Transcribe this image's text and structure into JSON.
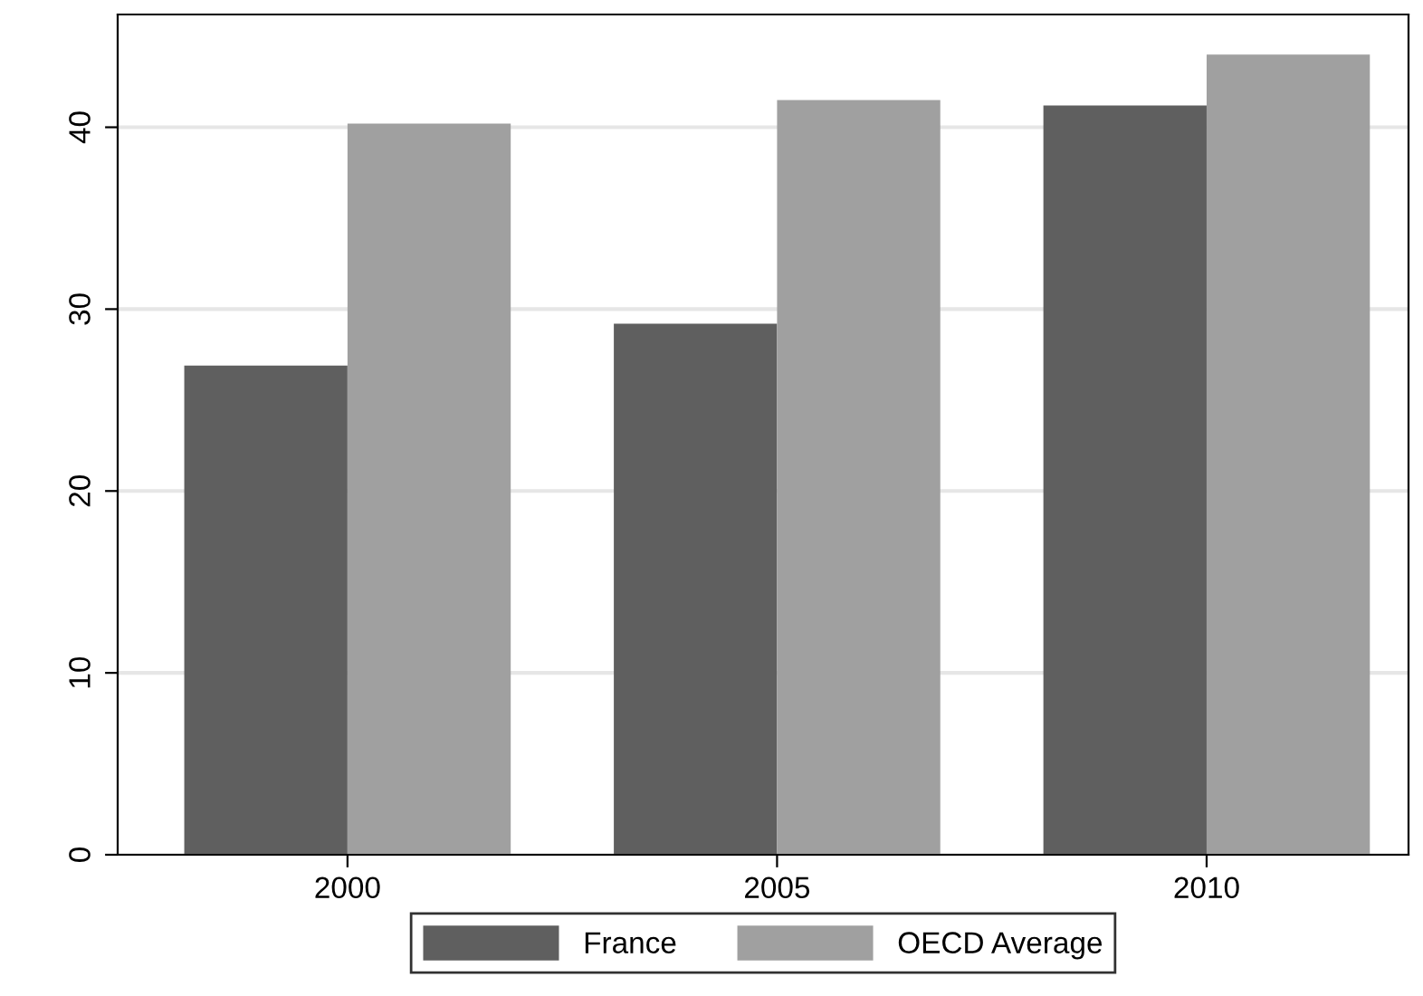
{
  "chart_data": {
    "type": "bar",
    "categories": [
      "2000",
      "2005",
      "2010"
    ],
    "series": [
      {
        "name": "France",
        "color": "#5f5f5f",
        "values": [
          26.9,
          29.2,
          41.2
        ]
      },
      {
        "name": "OECD Average",
        "color": "#a0a0a0",
        "values": [
          40.2,
          41.5,
          44.0
        ]
      }
    ],
    "ylim": [
      0,
      46.2
    ],
    "yticks": [
      0,
      10,
      20,
      30,
      40
    ],
    "grid": "y",
    "legend": "bottom"
  }
}
